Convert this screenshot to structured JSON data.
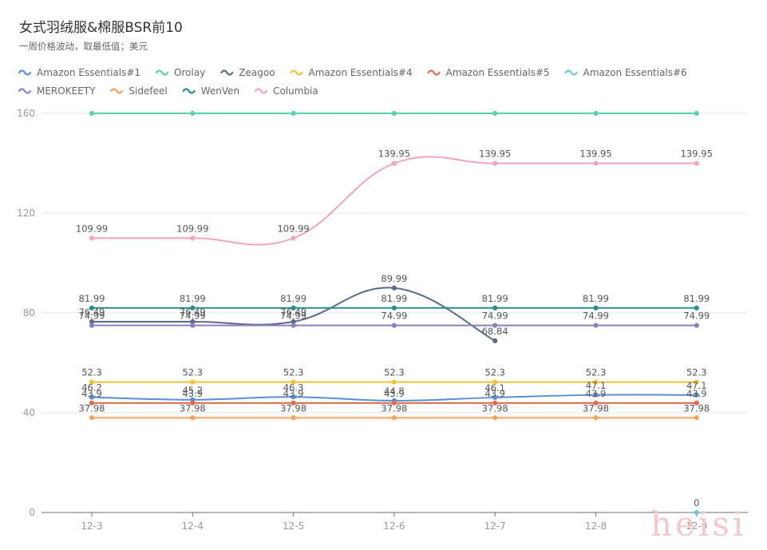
{
  "chart_data": {
    "type": "line",
    "title": "女式羽绒服&棉服BSR前10",
    "subtitle": "一周价格波动，取最低值；美元",
    "x": [
      "12-3",
      "12-4",
      "12-5",
      "12-6",
      "12-7",
      "12-8",
      "12-9"
    ],
    "ylim": [
      0,
      160
    ],
    "yticks": [
      0,
      40,
      80,
      120,
      160
    ],
    "grid": true,
    "legend_position": "top-left",
    "series": [
      {
        "name": "Amazon Essentials#1",
        "color": "#5b8fd1",
        "values": [
          46.2,
          45.2,
          46.3,
          44.8,
          46.1,
          47.1,
          47.1
        ]
      },
      {
        "name": "Orolay",
        "color": "#5fcfae",
        "values": [
          159.99,
          159.99,
          159.99,
          159.99,
          159.99,
          159.99,
          159.99
        ]
      },
      {
        "name": "Zeagoo",
        "color": "#5d6b84",
        "values": [
          76.49,
          76.49,
          76.49,
          89.99,
          68.84,
          null,
          null
        ]
      },
      {
        "name": "Amazon Essentials#4",
        "color": "#f3c338",
        "values": [
          52.3,
          52.3,
          52.3,
          52.3,
          52.3,
          52.3,
          52.3
        ]
      },
      {
        "name": "Amazon Essentials#5",
        "color": "#e06a4c",
        "values": [
          43.9,
          43.9,
          43.9,
          43.9,
          43.9,
          43.9,
          43.9
        ]
      },
      {
        "name": "Amazon Essentials#6",
        "color": "#6bc6d9",
        "values": [
          null,
          null,
          null,
          null,
          null,
          null,
          0
        ]
      },
      {
        "name": "MEROKEETY",
        "color": "#8b7fbf",
        "values": [
          74.99,
          74.99,
          74.99,
          74.99,
          74.99,
          74.99,
          74.99
        ]
      },
      {
        "name": "Sidefeel",
        "color": "#f2a45a",
        "values": [
          37.98,
          37.98,
          37.98,
          37.98,
          37.98,
          37.98,
          37.98
        ]
      },
      {
        "name": "WenVen",
        "color": "#2a8f8a",
        "values": [
          81.99,
          81.99,
          81.99,
          81.99,
          81.99,
          81.99,
          81.99
        ]
      },
      {
        "name": "Columbia",
        "color": "#efa6be",
        "values": [
          109.99,
          109.99,
          109.99,
          139.95,
          139.95,
          139.95,
          139.95
        ]
      }
    ],
    "data_labels": [
      {
        "series": 9,
        "values": [
          109.99,
          109.99,
          109.99,
          139.95,
          139.95,
          139.95,
          139.95
        ]
      },
      {
        "series": 8,
        "values": [
          81.99,
          81.99,
          81.99,
          81.99,
          81.99,
          81.99,
          81.99
        ]
      },
      {
        "series": 2,
        "values": [
          76.49,
          76.49,
          76.49,
          89.99,
          68.84,
          null,
          null
        ]
      },
      {
        "series": 6,
        "values": [
          74.99,
          74.99,
          74.99,
          74.99,
          74.99,
          74.99,
          74.99
        ]
      },
      {
        "series": 3,
        "values": [
          52.3,
          52.3,
          52.3,
          52.3,
          52.3,
          52.3,
          52.3
        ]
      },
      {
        "series": 0,
        "values": [
          46.2,
          45.2,
          46.3,
          44.8,
          46.1,
          47.1,
          47.1
        ]
      },
      {
        "series": 4,
        "values": [
          43.9,
          43.9,
          43.9,
          43.9,
          43.9,
          43.9,
          43.9
        ]
      },
      {
        "series": 7,
        "values": [
          37.98,
          37.98,
          37.98,
          37.98,
          37.98,
          37.98,
          37.98
        ]
      },
      {
        "series": 5,
        "values": [
          null,
          null,
          null,
          null,
          null,
          null,
          0
        ]
      }
    ]
  },
  "watermark": "heisi"
}
